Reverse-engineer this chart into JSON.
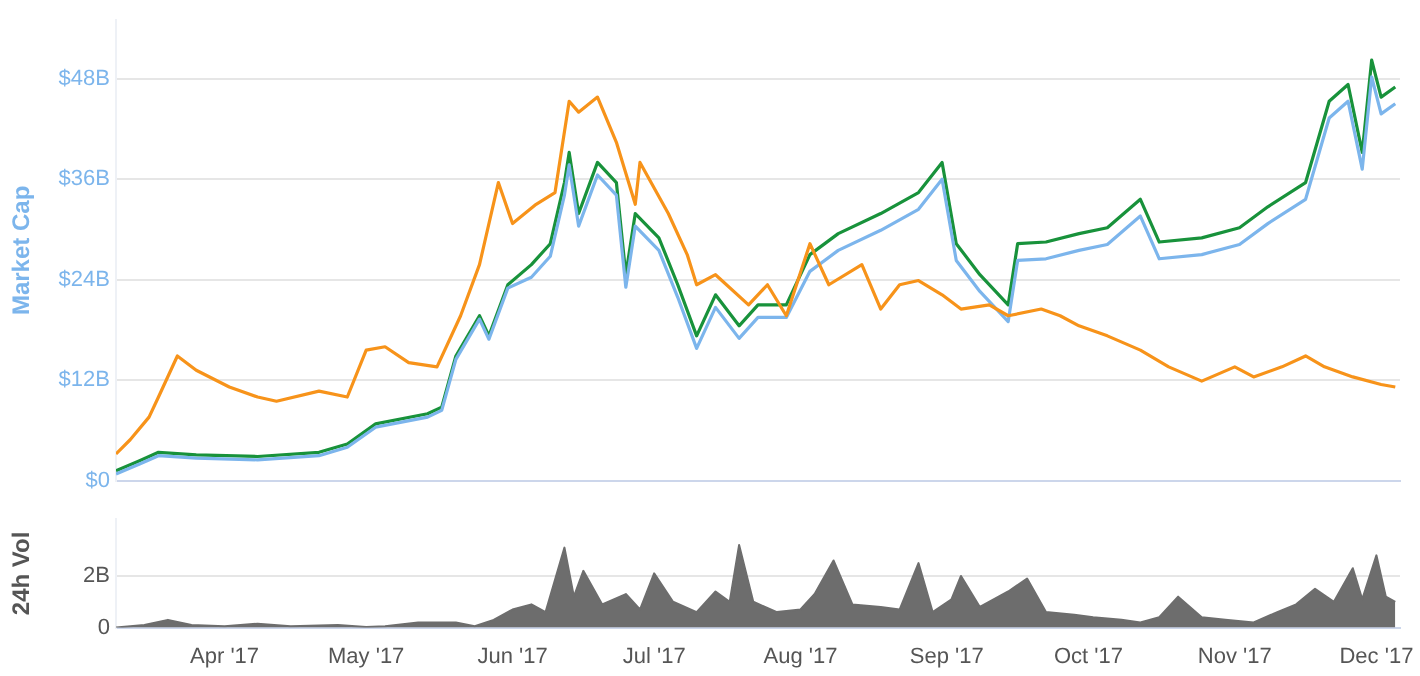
{
  "chart_data": [
    {
      "type": "line",
      "ylabel": "Market Cap",
      "xlim": [
        "2017-03-09",
        "2017-12-06"
      ],
      "ylim": [
        0,
        55
      ],
      "yticks": [
        {
          "value": 0,
          "label": "$0"
        },
        {
          "value": 12,
          "label": "$12B"
        },
        {
          "value": 24,
          "label": "$24B"
        },
        {
          "value": 36,
          "label": "$36B"
        },
        {
          "value": 48,
          "label": "$48B"
        }
      ],
      "grid": "y",
      "tick_labels": "y",
      "series": [
        {
          "color": "#f7931a",
          "x": [
            "2017-03-09",
            "2017-03-12",
            "2017-03-16",
            "2017-03-18",
            "2017-03-22",
            "2017-03-26",
            "2017-04-02",
            "2017-04-08",
            "2017-04-12",
            "2017-04-21",
            "2017-04-27",
            "2017-05-01",
            "2017-05-05",
            "2017-05-10",
            "2017-05-16",
            "2017-05-21",
            "2017-05-25",
            "2017-05-29",
            "2017-06-01",
            "2017-06-06",
            "2017-06-10",
            "2017-06-13",
            "2017-06-15",
            "2017-06-19",
            "2017-06-23",
            "2017-06-27",
            "2017-06-28",
            "2017-07-04",
            "2017-07-08",
            "2017-07-10",
            "2017-07-14",
            "2017-07-21",
            "2017-07-25",
            "2017-07-29",
            "2017-08-03",
            "2017-08-07",
            "2017-08-14",
            "2017-08-18",
            "2017-08-22",
            "2017-08-26",
            "2017-08-31",
            "2017-09-04",
            "2017-09-10",
            "2017-09-14",
            "2017-09-21",
            "2017-09-25",
            "2017-09-29",
            "2017-10-05",
            "2017-10-12",
            "2017-10-18",
            "2017-10-25",
            "2017-11-01",
            "2017-11-05",
            "2017-11-11",
            "2017-11-16",
            "2017-11-20",
            "2017-11-26",
            "2017-12-02",
            "2017-12-05"
          ],
          "values": [
            3.2,
            4.9,
            7.6,
            10,
            14.9,
            13.2,
            11.2,
            10,
            9.5,
            10.7,
            10,
            15.6,
            16,
            14.1,
            13.6,
            19.7,
            25.8,
            35.6,
            30.7,
            33,
            34.4,
            45.3,
            44,
            45.8,
            40.4,
            33,
            38,
            31.9,
            27,
            23.4,
            24.6,
            21,
            23.4,
            19.7,
            28.3,
            23.4,
            25.8,
            20.5,
            23.4,
            23.9,
            22.2,
            20.5,
            21,
            19.7,
            20.5,
            19.7,
            18.5,
            17.3,
            15.6,
            13.6,
            11.9,
            13.6,
            12.4,
            13.6,
            14.9,
            13.6,
            12.4,
            11.5,
            11.2
          ]
        },
        {
          "color": "#7cb5ec",
          "x": [
            "2017-03-09",
            "2017-03-14",
            "2017-03-18",
            "2017-03-26",
            "2017-04-08",
            "2017-04-21",
            "2017-04-27",
            "2017-05-03",
            "2017-05-14",
            "2017-05-17",
            "2017-05-20",
            "2017-05-25",
            "2017-05-27",
            "2017-05-31",
            "2017-06-05",
            "2017-06-09",
            "2017-06-12",
            "2017-06-13",
            "2017-06-15",
            "2017-06-19",
            "2017-06-23",
            "2017-06-25",
            "2017-06-27",
            "2017-07-02",
            "2017-07-06",
            "2017-07-10",
            "2017-07-14",
            "2017-07-19",
            "2017-07-23",
            "2017-07-29",
            "2017-08-03",
            "2017-08-09",
            "2017-08-18",
            "2017-08-26",
            "2017-08-31",
            "2017-09-03",
            "2017-09-08",
            "2017-09-14",
            "2017-09-16",
            "2017-09-22",
            "2017-09-29",
            "2017-10-05",
            "2017-10-12",
            "2017-10-16",
            "2017-10-25",
            "2017-11-02",
            "2017-11-08",
            "2017-11-16",
            "2017-11-21",
            "2017-11-25",
            "2017-11-28",
            "2017-11-30",
            "2017-12-02",
            "2017-12-05"
          ],
          "values": [
            0.8,
            2,
            3,
            2.7,
            2.5,
            3,
            4,
            6.4,
            7.6,
            8.4,
            14.5,
            19.3,
            16.9,
            23,
            24.3,
            26.8,
            34.1,
            37.7,
            30.4,
            36.5,
            34.1,
            23.1,
            30.4,
            27.5,
            21.9,
            15.8,
            20.7,
            17,
            19.5,
            19.5,
            25,
            27.5,
            29.9,
            32.4,
            36,
            26.3,
            22.6,
            19,
            26.3,
            26.5,
            27.5,
            28.2,
            31.6,
            26.5,
            27,
            28.2,
            30.7,
            33.6,
            43.3,
            45.3,
            37.2,
            48.2,
            43.8,
            45
          ]
        },
        {
          "color": "#18923b",
          "x": [
            "2017-03-09",
            "2017-03-14",
            "2017-03-18",
            "2017-03-26",
            "2017-04-08",
            "2017-04-21",
            "2017-04-27",
            "2017-05-03",
            "2017-05-14",
            "2017-05-17",
            "2017-05-20",
            "2017-05-25",
            "2017-05-27",
            "2017-05-31",
            "2017-06-05",
            "2017-06-09",
            "2017-06-12",
            "2017-06-13",
            "2017-06-15",
            "2017-06-19",
            "2017-06-23",
            "2017-06-25",
            "2017-06-27",
            "2017-07-02",
            "2017-07-06",
            "2017-07-10",
            "2017-07-14",
            "2017-07-19",
            "2017-07-23",
            "2017-07-29",
            "2017-08-03",
            "2017-08-09",
            "2017-08-18",
            "2017-08-26",
            "2017-08-31",
            "2017-09-03",
            "2017-09-08",
            "2017-09-14",
            "2017-09-16",
            "2017-09-22",
            "2017-09-29",
            "2017-10-05",
            "2017-10-12",
            "2017-10-16",
            "2017-10-25",
            "2017-11-02",
            "2017-11-08",
            "2017-11-16",
            "2017-11-21",
            "2017-11-25",
            "2017-11-28",
            "2017-11-30",
            "2017-12-02",
            "2017-12-05"
          ],
          "values": [
            1.2,
            2.4,
            3.4,
            3.1,
            2.9,
            3.4,
            4.4,
            6.8,
            8,
            8.8,
            14.9,
            19.7,
            17.3,
            23.4,
            25.8,
            28.3,
            35.6,
            39.2,
            31.9,
            38,
            35.6,
            24.6,
            31.9,
            29,
            23.4,
            17.3,
            22.2,
            18.5,
            21,
            21,
            27,
            29.5,
            31.9,
            34.4,
            38,
            28.3,
            24.6,
            21,
            28.3,
            28.5,
            29.5,
            30.2,
            33.6,
            28.5,
            29,
            30.2,
            32.7,
            35.6,
            45.3,
            47.3,
            39.2,
            50.2,
            45.8,
            47
          ]
        }
      ]
    },
    {
      "type": "area",
      "ylabel": "24h Vol",
      "xlim": [
        "2017-03-09",
        "2017-12-06"
      ],
      "xticks": [
        {
          "value": "2017-04-01",
          "label": "Apr '17"
        },
        {
          "value": "2017-05-01",
          "label": "May '17"
        },
        {
          "value": "2017-06-01",
          "label": "Jun '17"
        },
        {
          "value": "2017-07-01",
          "label": "Jul '17"
        },
        {
          "value": "2017-08-01",
          "label": "Aug '17"
        },
        {
          "value": "2017-09-01",
          "label": "Sep '17"
        },
        {
          "value": "2017-10-01",
          "label": "Oct '17"
        },
        {
          "value": "2017-11-01",
          "label": "Nov '17"
        },
        {
          "value": "2017-12-01",
          "label": "Dec '17"
        }
      ],
      "ylim": [
        0,
        4.2
      ],
      "yticks": [
        {
          "value": 0,
          "label": "0"
        },
        {
          "value": 2,
          "label": "2B"
        }
      ],
      "grid": "y",
      "series": [
        {
          "color": "#6d6d6d",
          "x": [
            "2017-03-09",
            "2017-03-15",
            "2017-03-20",
            "2017-03-25",
            "2017-04-01",
            "2017-04-08",
            "2017-04-15",
            "2017-04-25",
            "2017-05-01",
            "2017-05-05",
            "2017-05-12",
            "2017-05-20",
            "2017-05-24",
            "2017-05-28",
            "2017-06-01",
            "2017-06-05",
            "2017-06-08",
            "2017-06-12",
            "2017-06-14",
            "2017-06-16",
            "2017-06-20",
            "2017-06-25",
            "2017-06-28",
            "2017-07-01",
            "2017-07-05",
            "2017-07-10",
            "2017-07-14",
            "2017-07-17",
            "2017-07-19",
            "2017-07-22",
            "2017-07-27",
            "2017-08-01",
            "2017-08-04",
            "2017-08-08",
            "2017-08-12",
            "2017-08-18",
            "2017-08-22",
            "2017-08-26",
            "2017-08-29",
            "2017-09-02",
            "2017-09-04",
            "2017-09-08",
            "2017-09-14",
            "2017-09-18",
            "2017-09-22",
            "2017-09-28",
            "2017-10-02",
            "2017-10-08",
            "2017-10-12",
            "2017-10-16",
            "2017-10-20",
            "2017-10-25",
            "2017-10-30",
            "2017-11-05",
            "2017-11-10",
            "2017-11-14",
            "2017-11-18",
            "2017-11-22",
            "2017-11-26",
            "2017-11-28",
            "2017-12-01",
            "2017-12-03",
            "2017-12-05"
          ],
          "values": [
            0,
            0.1,
            0.3,
            0.1,
            0.05,
            0.15,
            0.05,
            0.1,
            0.02,
            0.05,
            0.2,
            0.2,
            0.05,
            0.3,
            0.7,
            0.9,
            0.6,
            3.1,
            1.2,
            2.2,
            0.9,
            1.3,
            0.7,
            2.1,
            1,
            0.6,
            1.4,
            1,
            3.2,
            1,
            0.6,
            0.7,
            1.3,
            2.6,
            0.9,
            0.8,
            0.7,
            2.5,
            0.6,
            1.1,
            2,
            0.8,
            1.4,
            1.9,
            0.6,
            0.5,
            0.4,
            0.3,
            0.2,
            0.4,
            1.2,
            0.4,
            0.3,
            0.2,
            0.6,
            0.9,
            1.5,
            1,
            2.3,
            1.1,
            2.8,
            1.2,
            1
          ]
        }
      ]
    }
  ]
}
